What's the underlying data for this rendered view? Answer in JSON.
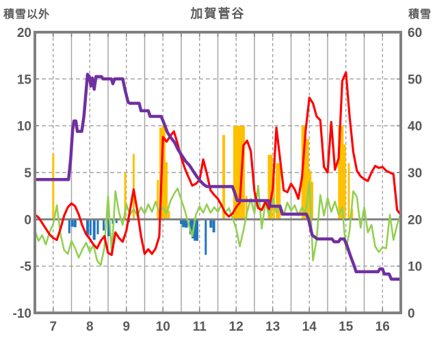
{
  "chart_data": {
    "type": "combo_line_bar",
    "title": "加賀菅谷",
    "x_axis": {
      "range": [
        6.5,
        16.5
      ],
      "tick_labels": [
        "7",
        "8",
        "9",
        "10",
        "11",
        "12",
        "13",
        "14",
        "15",
        "16"
      ],
      "tick_values": [
        7,
        8,
        9,
        10,
        11,
        12,
        13,
        14,
        15,
        16
      ]
    },
    "left_axis": {
      "label": "積雪以外",
      "range": [
        -10,
        20
      ],
      "tick_labels": [
        "20",
        "15",
        "10",
        "5",
        "0",
        "-5",
        "-10"
      ],
      "tick_values": [
        20,
        15,
        10,
        5,
        0,
        -5,
        -10
      ]
    },
    "right_axis": {
      "label": "積雪",
      "range": [
        0,
        60
      ],
      "tick_labels": [
        "60",
        "50",
        "40",
        "30",
        "20",
        "10",
        "0"
      ],
      "tick_values": [
        60,
        50,
        40,
        30,
        20,
        10,
        0
      ]
    },
    "grid": {
      "h_dashed_left_values": [
        15,
        10,
        5,
        -5
      ],
      "v_solid_months": [
        7.5,
        8.5,
        9.5,
        10.5,
        11.5,
        12.5,
        13.5,
        14.5,
        15.5
      ],
      "v_dashed_months": [
        7,
        8,
        9,
        10,
        11,
        12,
        13,
        14,
        15,
        16
      ]
    },
    "colors": {
      "red_line": "#FF0000",
      "green_line": "#92D050",
      "purple_line": "#7030A0",
      "orange_bars": "#FFC000",
      "blue_bars": "#2074BE",
      "grid": "#A0A0A0",
      "frame": "#808080",
      "text": "#595959"
    },
    "series": [
      {
        "name": "snow_depth_purple_line",
        "type": "line",
        "axis": "right",
        "color": "#7030A0",
        "width": 4.5,
        "points": [
          [
            6.5,
            28.5
          ],
          [
            7.42,
            28.5
          ],
          [
            7.48,
            33
          ],
          [
            7.53,
            39
          ],
          [
            7.57,
            41
          ],
          [
            7.62,
            41
          ],
          [
            7.66,
            38.8
          ],
          [
            7.78,
            38.8
          ],
          [
            7.84,
            42
          ],
          [
            7.9,
            47.5
          ],
          [
            7.94,
            51
          ],
          [
            7.99,
            50.5
          ],
          [
            8.03,
            48.5
          ],
          [
            8.07,
            50.2
          ],
          [
            8.12,
            47.8
          ],
          [
            8.17,
            50.5
          ],
          [
            8.32,
            50.5
          ],
          [
            8.36,
            50
          ],
          [
            8.59,
            50
          ],
          [
            8.63,
            49
          ],
          [
            8.68,
            50
          ],
          [
            8.9,
            50
          ],
          [
            8.97,
            47.5
          ],
          [
            9.05,
            45
          ],
          [
            9.1,
            44.8
          ],
          [
            9.35,
            44.8
          ],
          [
            9.4,
            43.2
          ],
          [
            9.6,
            43.2
          ],
          [
            9.65,
            42
          ],
          [
            9.95,
            42
          ],
          [
            10.03,
            40.5
          ],
          [
            10.12,
            38.6
          ],
          [
            10.22,
            37.4
          ],
          [
            10.32,
            36.4
          ],
          [
            10.42,
            34.8
          ],
          [
            10.52,
            33.6
          ],
          [
            10.62,
            32.4
          ],
          [
            10.72,
            31.6
          ],
          [
            10.82,
            30.4
          ],
          [
            10.92,
            29.2
          ],
          [
            11.02,
            28.2
          ],
          [
            11.12,
            27.4
          ],
          [
            11.2,
            27
          ],
          [
            11.9,
            27
          ],
          [
            11.97,
            25.5
          ],
          [
            12.03,
            24
          ],
          [
            12.88,
            24
          ],
          [
            12.94,
            22.8
          ],
          [
            13.2,
            22.8
          ],
          [
            13.26,
            21.1
          ],
          [
            13.92,
            21.1
          ],
          [
            13.98,
            20
          ],
          [
            14.03,
            18.2
          ],
          [
            14.08,
            16.6
          ],
          [
            14.15,
            16.2
          ],
          [
            14.22,
            15.8
          ],
          [
            14.62,
            15.8
          ],
          [
            14.68,
            15.2
          ],
          [
            14.8,
            15.2
          ],
          [
            14.85,
            15.8
          ],
          [
            14.95,
            15.8
          ],
          [
            15.02,
            14.6
          ],
          [
            15.08,
            13.2
          ],
          [
            15.15,
            11.6
          ],
          [
            15.22,
            10.2
          ],
          [
            15.28,
            8.8
          ],
          [
            15.88,
            8.8
          ],
          [
            15.93,
            9.4
          ],
          [
            16.0,
            9.4
          ],
          [
            16.05,
            8.3
          ],
          [
            16.18,
            8.3
          ],
          [
            16.24,
            7.2
          ],
          [
            16.5,
            7.2
          ]
        ]
      },
      {
        "name": "red_line",
        "type": "line",
        "axis": "left",
        "color": "#FF0000",
        "width": 3.2,
        "x_start": 6.5,
        "x_step": 0.1,
        "values": [
          0.5,
          0.2,
          -0.4,
          -1.0,
          -1.6,
          -2.0,
          -2.2,
          -1.0,
          0.4,
          1.3,
          1.7,
          1.4,
          0.5,
          -0.7,
          -1.6,
          -2.1,
          -2.7,
          -3.1,
          -2.3,
          -1.8,
          -3.6,
          -3.8,
          -1.4,
          -2.0,
          -2.4,
          -1.2,
          1.0,
          3.2,
          0.9,
          -1.8,
          -3.7,
          -3.2,
          -3.7,
          -3.1,
          -1.8,
          8.8,
          8.3,
          8.9,
          9.4,
          8.1,
          6.6,
          5.4,
          4.5,
          3.6,
          3.8,
          4.2,
          6.4,
          4.9,
          3.1,
          2.6,
          2.2,
          1.5,
          0.7,
          0.3,
          0.6,
          1.3,
          1.8,
          7.9,
          8.4,
          7.3,
          3.0,
          1.2,
          1.0,
          1.9,
          1.1,
          3.2,
          9.8,
          6.5,
          3.1,
          2.9,
          3.8,
          3.2,
          2.2,
          4.5,
          9.5,
          13.0,
          12.4,
          11.0,
          10.6,
          5.6,
          5.0,
          10.4,
          5.3,
          6.5,
          14.8,
          15.7,
          11.0,
          7.2,
          5.2,
          4.6,
          4.3,
          4.1,
          5.0,
          5.7,
          5.5,
          5.6,
          5.2,
          5.0,
          4.8,
          1.0,
          0.5
        ]
      },
      {
        "name": "green_line",
        "type": "line",
        "axis": "left",
        "color": "#92D050",
        "width": 2.6,
        "x_start": 6.5,
        "x_step": 0.1,
        "values": [
          -1.2,
          -2.3,
          -1.7,
          -2.7,
          -1.4,
          -0.5,
          1.5,
          -1.6,
          -3.3,
          -3.7,
          -2.3,
          -3.1,
          -4.1,
          -3.2,
          -2.5,
          -3.5,
          -2.7,
          -4.4,
          -4.9,
          -3.0,
          2.5,
          -3.6,
          3.0,
          0.7,
          -0.6,
          1.6,
          0.5,
          1.1,
          0.4,
          1.3,
          0.6,
          1.6,
          0.8,
          1.9,
          0.7,
          1.3,
          0.6,
          1.9,
          2.7,
          3.3,
          2.1,
          0.9,
          -0.5,
          -1.8,
          0.5,
          1.4,
          0.7,
          1.6,
          0.7,
          1.3,
          0.8,
          1.6,
          0.7,
          1.2,
          0.2,
          -1.0,
          -2.9,
          -1.2,
          0.8,
          2.2,
          0.6,
          3.6,
          -1.0,
          1.8,
          0.4,
          2.3,
          0.7,
          1.6,
          0.5,
          1.8,
          0.9,
          1.5,
          0.4,
          1.3,
          0.6,
          4.0,
          -4.4,
          -2.2,
          2.6,
          0.4,
          2.3,
          0.8,
          1.9,
          0.5,
          1.3,
          -3.3,
          -1.2,
          3.0,
          2.4,
          -0.9,
          1.3,
          -1.4,
          -0.6,
          -2.9,
          -3.5,
          -3.0,
          -3.1,
          0.5,
          -2.2,
          -0.6,
          0.6
        ]
      },
      {
        "name": "orange_bars",
        "type": "bar",
        "axis": "left",
        "color": "#FFC000",
        "bars": [
          [
            7.0,
            7.0,
            3
          ],
          [
            8.97,
            5.0,
            3
          ],
          [
            9.2,
            7.0,
            3
          ],
          [
            9.86,
            4.2,
            3
          ],
          [
            9.94,
            9.8,
            4
          ],
          [
            10.02,
            10.0,
            5
          ],
          [
            10.09,
            6.1,
            4
          ],
          [
            10.16,
            0.9,
            3
          ],
          [
            11.66,
            9.0,
            4
          ],
          [
            12.08,
            10.0,
            17
          ],
          [
            12.28,
            2.5,
            3
          ],
          [
            12.93,
            6.9,
            7
          ],
          [
            13.03,
            4.5,
            3
          ],
          [
            13.15,
            6.0,
            7
          ],
          [
            13.85,
            10.0,
            7
          ],
          [
            13.95,
            8.6,
            4
          ],
          [
            14.02,
            5.2,
            4
          ],
          [
            14.08,
            4.0,
            3
          ],
          [
            14.86,
            10.0,
            8
          ],
          [
            14.96,
            8.0,
            4
          ],
          [
            15.08,
            6.0,
            3
          ],
          [
            15.17,
            1.1,
            3
          ]
        ]
      },
      {
        "name": "blue_bars",
        "type": "bar",
        "axis": "left",
        "color": "#2074BE",
        "bars": [
          [
            7.44,
            -1.5,
            3
          ],
          [
            7.52,
            -0.8,
            4
          ],
          [
            7.6,
            -0.85,
            4
          ],
          [
            7.94,
            -1.7,
            4
          ],
          [
            8.02,
            -1.7,
            3
          ],
          [
            8.12,
            -2.2,
            4
          ],
          [
            8.22,
            -1.6,
            3
          ],
          [
            8.38,
            -1.2,
            3
          ],
          [
            8.52,
            -1.8,
            4
          ],
          [
            8.63,
            -0.5,
            3
          ],
          [
            8.73,
            -0.4,
            3
          ],
          [
            9.07,
            -0.3,
            3
          ],
          [
            10.5,
            -0.5,
            4
          ],
          [
            10.57,
            -0.85,
            5
          ],
          [
            10.64,
            -0.9,
            4
          ],
          [
            10.76,
            -1.6,
            4
          ],
          [
            10.82,
            -2.05,
            4
          ],
          [
            10.88,
            -2.3,
            4
          ],
          [
            10.94,
            -2.3,
            3
          ],
          [
            11.17,
            -3.8,
            3
          ],
          [
            11.31,
            -0.9,
            4
          ],
          [
            11.39,
            -1.4,
            4
          ]
        ]
      }
    ]
  }
}
